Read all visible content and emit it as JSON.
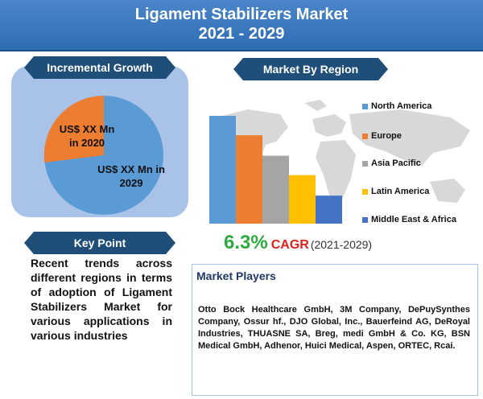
{
  "header": {
    "title_line1": "Ligament Stabilizers Market",
    "title_line2": "2021 - 2029"
  },
  "incremental_growth": {
    "heading": "Incremental Growth",
    "slices": [
      {
        "label_line1": "US$ XX Mn",
        "label_line2": "in 2020",
        "color": "#ed7d31"
      },
      {
        "label_line1": "US$ XX Mn in",
        "label_line2": "2029",
        "color": "#5b9bd5"
      }
    ]
  },
  "key_point": {
    "heading": "Key Point",
    "text": "Recent trends across different regions in terms of adoption of Ligament Stabilizers Market for various applications in various industries"
  },
  "market_by_region": {
    "heading": "Market By Region",
    "chart_data": {
      "type": "bar",
      "categories": [
        "North America",
        "Europe",
        "Asia Pacific",
        "Latin America",
        "Middle East & Africa"
      ],
      "values": [
        100,
        82,
        63,
        45,
        26
      ],
      "colors": [
        "#5b9bd5",
        "#ed7d31",
        "#a5a5a5",
        "#ffc000",
        "#4472c4"
      ],
      "legend_position": "right",
      "grid": false
    }
  },
  "cagr": {
    "value": "6.3%",
    "label": "CAGR",
    "period": "(2021-2029)"
  },
  "market_players": {
    "heading": "Market Players",
    "text": "Otto Bock Healthcare GmbH, 3M Company, DePuySynthes Company, Ossur hf., DJO Global, Inc., Bauerfeind AG, DeRoyal Industries, THUASNE SA, Breg, medi GmbH & Co. KG, BSN Medical GmbH, Adhenor, Huici Medical, Aspen, ORTEC, Rcai."
  }
}
